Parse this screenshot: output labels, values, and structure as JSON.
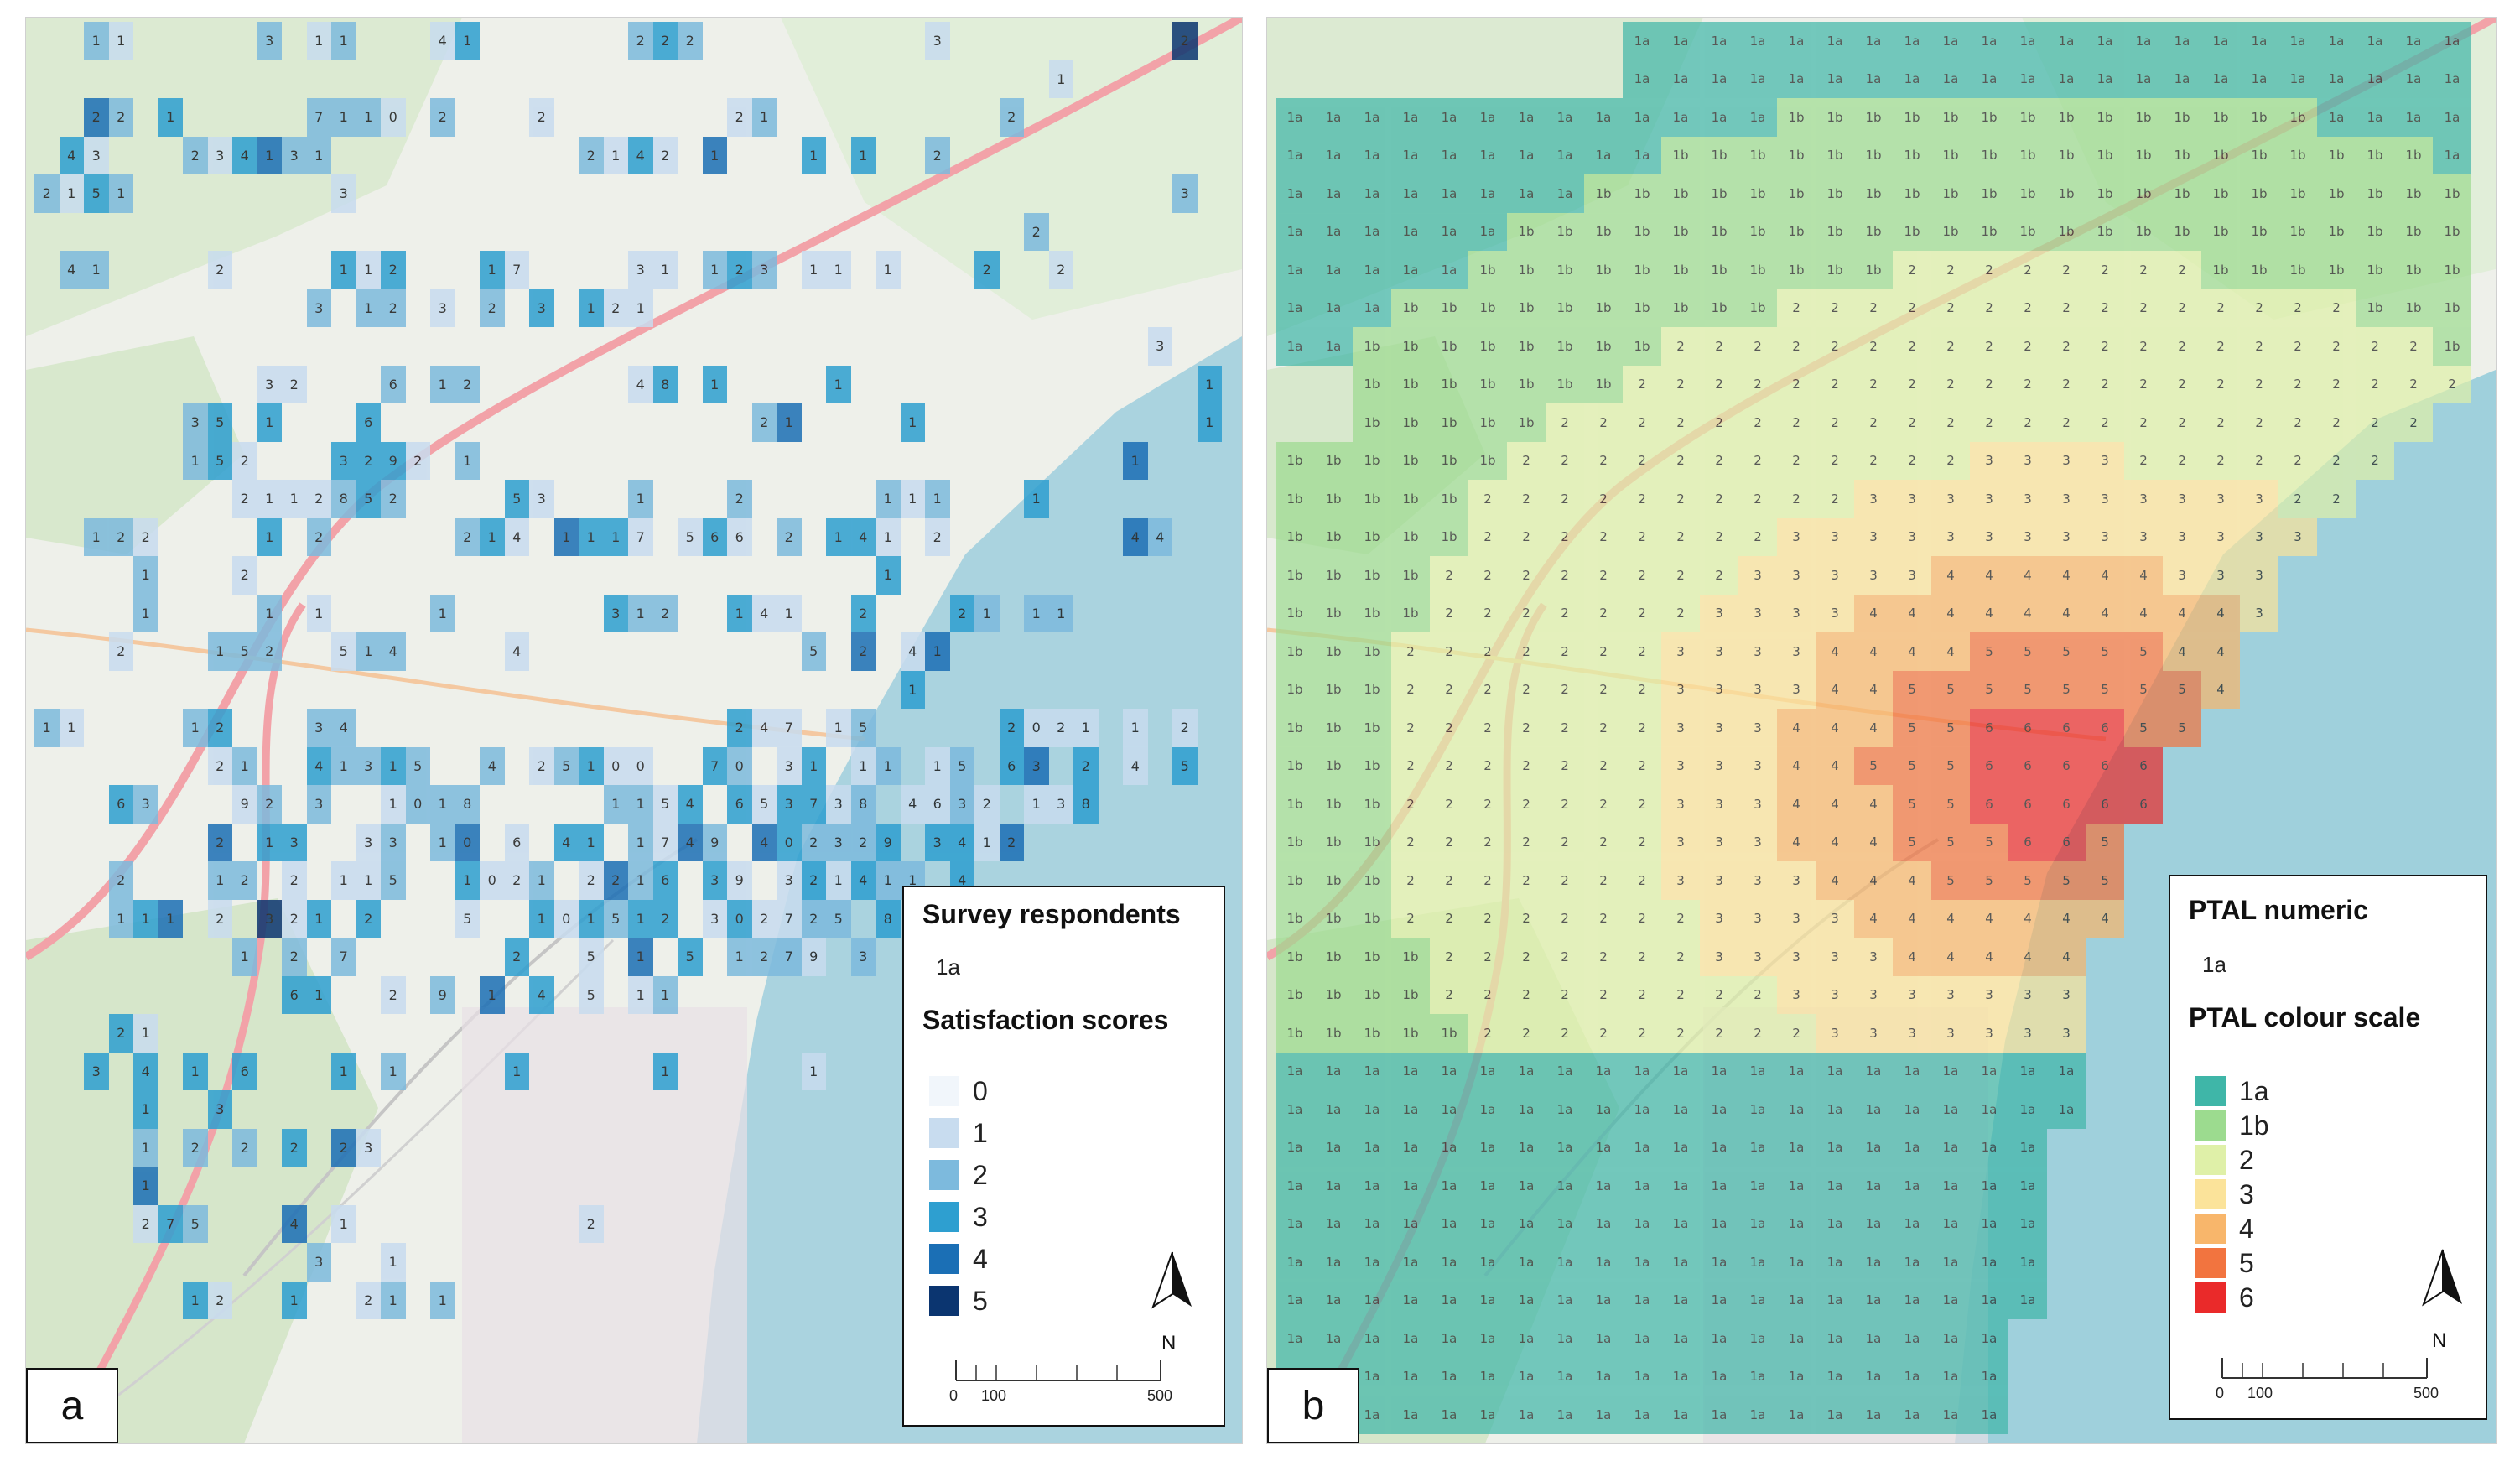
{
  "panels": [
    {
      "id": "a",
      "label": "a",
      "legend": {
        "title1": "Survey respondents",
        "sample": "1a",
        "title2": "Satisfaction scores",
        "classes": [
          {
            "label": "0",
            "color": "#f1f6fb"
          },
          {
            "label": "1",
            "color": "#c8dcef"
          },
          {
            "label": "2",
            "color": "#7dbadd"
          },
          {
            "label": "3",
            "color": "#2e9fd0"
          },
          {
            "label": "4",
            "color": "#1b6fb5"
          },
          {
            "label": "5",
            "color": "#0b3570"
          }
        ],
        "north": "N",
        "scale": {
          "labels": [
            "0",
            "100",
            "500"
          ]
        }
      }
    },
    {
      "id": "b",
      "label": "b",
      "legend": {
        "title1": "PTAL numeric",
        "sample": "1a",
        "title2": "PTAL colour scale",
        "classes": [
          {
            "label": "1a",
            "color": "#3fb6a8"
          },
          {
            "label": "1b",
            "color": "#9cdb8f"
          },
          {
            "label": "2",
            "color": "#dff0a8"
          },
          {
            "label": "3",
            "color": "#fbe39a"
          },
          {
            "label": "4",
            "color": "#f8b66b"
          },
          {
            "label": "5",
            "color": "#f2743f"
          },
          {
            "label": "6",
            "color": "#ea2a2a"
          }
        ],
        "north": "N",
        "scale": {
          "labels": [
            "0",
            "100",
            "500"
          ]
        }
      }
    }
  ],
  "grid_a": [
    "..11.....3.11...41......222.........3.........2.",
    ".........................................1......",
    "..22.1.....7110.2...2.......21.........2........",
    ".43...234131..........2142.1...1.1..2...........",
    "2151........3.................................3.",
    "........................................2.......",
    ".41....2....112...17....31.123.11.1...2..2......",
    "...........3.12.3.2.3.121.......................",
    ".............................................3..",
    ".........32...6.12......48.1....1..............1",
    "......35.1...6...............21....1...........1",
    "......152...3292.1..........................1...",
    "........2112852....53...1...2.....111...1.......",
    "..122....1.2.....214.1117.566.2.141.2.......44..",
    "....1...2.........................1.............",
    "....1....1.1....1......312..141..2...21.11......",
    "...2...152..514....4...........5.2.41...........",
    "...................................1............",
    "11....12...34...............247.15.....2021.1.2.",
    ".......21..41315..4.25100..70.31.11.15.63.2.4.5.",
    "...63...92.3..1018.....1154.653738.4632.138.....",
    ".......2.13..33.10.6.41.1749.402329.3412........",
    "...2...12.2.115..1021.2216.39.321411.4..........",
    "...111.2.321.2...5..101512.302725.8...5.17......",
    "........1.2.7......2..5.1.5.1279.3..............",
    "..........61..2.9.1.4.5.11......................",
    "...21.....................................1.....",
    "..3.4.1.6...1.1....1.....1.....1................",
    "....1..3.......................................",
    "....1.2.2.2.23...................................",
    "....1............................................",
    "....275...4.1.........2..........................",
    "...........3..1..................................",
    "......12..1..21.1...............................",
    "................................................."
  ]
}
